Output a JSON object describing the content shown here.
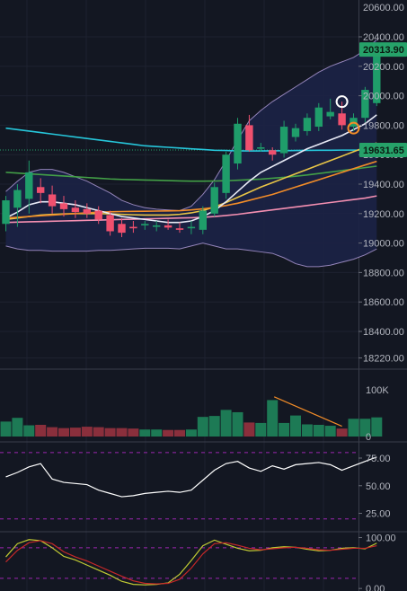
{
  "chart_data": [
    {
      "type": "candlestick",
      "panel": "price",
      "y_ticks": [
        20400,
        20200,
        20000,
        19800,
        19600,
        19400,
        19200,
        19000,
        18800,
        18600,
        18400,
        18220
      ],
      "y_tick_labels": [
        "20400.00",
        "20200.00",
        "20000.00",
        "19800.00",
        "19600.00",
        "19400.00",
        "19200.00",
        "19000.00",
        "18800.00",
        "18600.00",
        "18400.00",
        "18220.00"
      ],
      "partial_top_label": "20600.00",
      "ylim": [
        18150,
        20650
      ],
      "last_price": 20313.9,
      "last_price_label": "20313.90",
      "last_price_color": "#26a269",
      "ref_price": 19631.65,
      "ref_price_label": "19631.65",
      "ref_price_color": "#26a269",
      "up_color": "#1f9d6a",
      "down_color": "#f0506e",
      "candles": [
        {
          "o": 19130,
          "h": 19320,
          "l": 19080,
          "c": 19290
        },
        {
          "o": 19240,
          "h": 19400,
          "l": 19110,
          "c": 19360
        },
        {
          "o": 19300,
          "h": 19560,
          "l": 19200,
          "c": 19480
        },
        {
          "o": 19380,
          "h": 19440,
          "l": 19270,
          "c": 19340
        },
        {
          "o": 19330,
          "h": 19390,
          "l": 19200,
          "c": 19250
        },
        {
          "o": 19270,
          "h": 19320,
          "l": 19180,
          "c": 19230
        },
        {
          "o": 19240,
          "h": 19290,
          "l": 19170,
          "c": 19210
        },
        {
          "o": 19230,
          "h": 19270,
          "l": 19170,
          "c": 19200
        },
        {
          "o": 19220,
          "h": 19250,
          "l": 19130,
          "c": 19160
        },
        {
          "o": 19190,
          "h": 19220,
          "l": 19050,
          "c": 19080
        },
        {
          "o": 19130,
          "h": 19170,
          "l": 19040,
          "c": 19070
        },
        {
          "o": 19110,
          "h": 19150,
          "l": 19070,
          "c": 19100
        },
        {
          "o": 19120,
          "h": 19150,
          "l": 19090,
          "c": 19130
        },
        {
          "o": 19110,
          "h": 19150,
          "l": 19080,
          "c": 19120
        },
        {
          "o": 19120,
          "h": 19160,
          "l": 19090,
          "c": 19105
        },
        {
          "o": 19100,
          "h": 19140,
          "l": 19070,
          "c": 19090
        },
        {
          "o": 19100,
          "h": 19150,
          "l": 19060,
          "c": 19110
        },
        {
          "o": 19090,
          "h": 19250,
          "l": 19060,
          "c": 19220
        },
        {
          "o": 19200,
          "h": 19410,
          "l": 19180,
          "c": 19380
        },
        {
          "o": 19340,
          "h": 19620,
          "l": 19300,
          "c": 19600
        },
        {
          "o": 19540,
          "h": 19850,
          "l": 19500,
          "c": 19810
        },
        {
          "o": 19800,
          "h": 19870,
          "l": 19620,
          "c": 19630
        },
        {
          "o": 19640,
          "h": 19680,
          "l": 19620,
          "c": 19650
        },
        {
          "o": 19630,
          "h": 19650,
          "l": 19560,
          "c": 19600
        },
        {
          "o": 19610,
          "h": 19830,
          "l": 19580,
          "c": 19790
        },
        {
          "o": 19720,
          "h": 19810,
          "l": 19690,
          "c": 19780
        },
        {
          "o": 19760,
          "h": 19880,
          "l": 19730,
          "c": 19850
        },
        {
          "o": 19790,
          "h": 19950,
          "l": 19760,
          "c": 19920
        },
        {
          "o": 19860,
          "h": 19980,
          "l": 19840,
          "c": 19890
        },
        {
          "o": 19880,
          "h": 19960,
          "l": 19770,
          "c": 19800
        },
        {
          "o": 19790,
          "h": 19880,
          "l": 19760,
          "c": 19850
        },
        {
          "o": 19850,
          "h": 20060,
          "l": 19820,
          "c": 20040
        },
        {
          "o": 19950,
          "h": 20350,
          "l": 19930,
          "c": 20320
        }
      ],
      "overlays": [
        {
          "color": "#26c6da",
          "values": [
            19780,
            19770,
            19760,
            19750,
            19740,
            19730,
            19720,
            19710,
            19700,
            19690,
            19680,
            19670,
            19660,
            19655,
            19650,
            19645,
            19640,
            19635,
            19630,
            19628,
            19626,
            19625,
            19625,
            19626,
            19627,
            19628,
            19629,
            19630,
            19630,
            19631,
            19631,
            19631,
            19632
          ]
        },
        {
          "color": "#43a047",
          "values": [
            19480,
            19475,
            19470,
            19465,
            19460,
            19455,
            19450,
            19445,
            19440,
            19435,
            19432,
            19430,
            19428,
            19426,
            19424,
            19422,
            19420,
            19420,
            19421,
            19423,
            19426,
            19430,
            19434,
            19440,
            19446,
            19454,
            19462,
            19472,
            19482,
            19492,
            19502,
            19512,
            19522
          ]
        },
        {
          "color": "#e8c547",
          "values": [
            19160,
            19170,
            19180,
            19190,
            19195,
            19198,
            19200,
            19200,
            19200,
            19198,
            19195,
            19192,
            19190,
            19190,
            19190,
            19195,
            19205,
            19220,
            19245,
            19275,
            19310,
            19345,
            19380,
            19410,
            19440,
            19470,
            19500,
            19530,
            19560,
            19590,
            19620,
            19650,
            19680
          ]
        },
        {
          "color": "#f28c28",
          "values": [
            19170,
            19175,
            19180,
            19185,
            19190,
            19195,
            19200,
            19205,
            19210,
            19212,
            19214,
            19215,
            19216,
            19217,
            19218,
            19220,
            19225,
            19232,
            19242,
            19255,
            19270,
            19290,
            19310,
            19330,
            19355,
            19380,
            19405,
            19430,
            19455,
            19480,
            19505,
            19530,
            19555
          ]
        },
        {
          "color": "#f48fb1",
          "values": [
            19140,
            19142,
            19144,
            19146,
            19148,
            19150,
            19152,
            19154,
            19156,
            19158,
            19160,
            19162,
            19164,
            19166,
            19168,
            19170,
            19172,
            19175,
            19180,
            19187,
            19195,
            19205,
            19215,
            19225,
            19235,
            19245,
            19255,
            19265,
            19275,
            19285,
            19295,
            19305,
            19320
          ]
        },
        {
          "color": "#e8eaf6",
          "values": [
            19170,
            19210,
            19260,
            19280,
            19280,
            19270,
            19260,
            19240,
            19220,
            19200,
            19180,
            19170,
            19160,
            19150,
            19140,
            19140,
            19150,
            19180,
            19220,
            19280,
            19350,
            19420,
            19480,
            19520,
            19560,
            19600,
            19640,
            19670,
            19700,
            19730,
            19770,
            19810,
            19870
          ]
        }
      ],
      "envelope": {
        "upper": [
          19350,
          19420,
          19480,
          19500,
          19500,
          19480,
          19450,
          19420,
          19380,
          19340,
          19290,
          19260,
          19240,
          19230,
          19225,
          19220,
          19250,
          19330,
          19430,
          19560,
          19700,
          19830,
          19900,
          19960,
          20010,
          20060,
          20110,
          20160,
          20200,
          20230,
          20260,
          20310,
          20380
        ],
        "lower": [
          18980,
          18960,
          18950,
          18950,
          18945,
          18945,
          18945,
          18945,
          18950,
          18950,
          18955,
          18960,
          18965,
          18965,
          18965,
          18960,
          18980,
          19000,
          18980,
          18960,
          18960,
          18950,
          18940,
          18930,
          18900,
          18860,
          18840,
          18840,
          18850,
          18870,
          18890,
          18920,
          18960
        ],
        "color": "#b39ddb",
        "fill": "#1c2246"
      },
      "markers": [
        {
          "index": 29,
          "price": 19960,
          "color": "#ffffff"
        },
        {
          "index": 30,
          "price": 19780,
          "color": "#f28c28"
        }
      ]
    },
    {
      "type": "bar",
      "panel": "volume",
      "y_tick_labels": [
        "100K",
        "0"
      ],
      "ylim": [
        0,
        100000
      ],
      "values": [
        32000,
        40000,
        24000,
        25000,
        20000,
        18000,
        19000,
        21000,
        20000,
        18000,
        18000,
        17000,
        15000,
        15000,
        14000,
        14000,
        15000,
        42000,
        44000,
        57000,
        52000,
        30000,
        29000,
        78000,
        29000,
        45000,
        26000,
        25000,
        23000,
        17000,
        38000,
        38000,
        41000
      ],
      "directions": [
        "up",
        "up",
        "up",
        "down",
        "down",
        "down",
        "down",
        "down",
        "down",
        "down",
        "down",
        "down",
        "up",
        "up",
        "down",
        "down",
        "up",
        "up",
        "up",
        "up",
        "up",
        "down",
        "up",
        "up",
        "up",
        "up",
        "up",
        "up",
        "up",
        "down",
        "up",
        "up",
        "up"
      ],
      "up_color": "#1d7a55",
      "down_color": "#8a2f3c",
      "trendline": {
        "from": {
          "index": 23,
          "value": 85000
        },
        "to": {
          "index": 29,
          "value": 22000
        },
        "color": "#f28c28"
      }
    },
    {
      "type": "line",
      "panel": "oscillator-1",
      "y_tick_labels": [
        "75.00",
        "50.00",
        "25.00"
      ],
      "y_ticks": [
        75,
        50,
        25
      ],
      "ylim": [
        10,
        88
      ],
      "dashed_levels": [
        80,
        20
      ],
      "level_color": "#9c27b0",
      "series": [
        {
          "color": "#ffffff",
          "values": [
            58,
            62,
            67,
            70,
            56,
            53,
            52,
            51,
            46,
            43,
            40,
            41,
            43,
            44,
            45,
            44,
            46,
            55,
            64,
            70,
            72,
            66,
            63,
            68,
            65,
            69,
            70,
            71,
            69,
            64,
            68,
            72,
            76
          ]
        }
      ]
    },
    {
      "type": "line",
      "panel": "oscillator-2",
      "y_tick_labels": [
        "100.00",
        "0.00"
      ],
      "y_ticks": [
        100,
        0
      ],
      "ylim": [
        -5,
        108
      ],
      "dashed_levels": [
        80,
        20
      ],
      "level_color": "#9c27b0",
      "series": [
        {
          "color": "#c0ca33",
          "values": [
            62,
            88,
            96,
            94,
            80,
            63,
            56,
            46,
            36,
            26,
            14,
            8,
            7,
            8,
            11,
            28,
            55,
            84,
            95,
            87,
            79,
            74,
            75,
            80,
            82,
            81,
            77,
            74,
            75,
            79,
            80,
            78,
            89
          ]
        },
        {
          "color": "#c62828",
          "values": [
            52,
            75,
            90,
            94,
            88,
            72,
            62,
            54,
            44,
            34,
            24,
            15,
            10,
            9,
            10,
            18,
            40,
            68,
            88,
            90,
            85,
            79,
            76,
            78,
            80,
            81,
            79,
            76,
            75,
            77,
            79,
            79,
            84
          ]
        }
      ]
    }
  ]
}
